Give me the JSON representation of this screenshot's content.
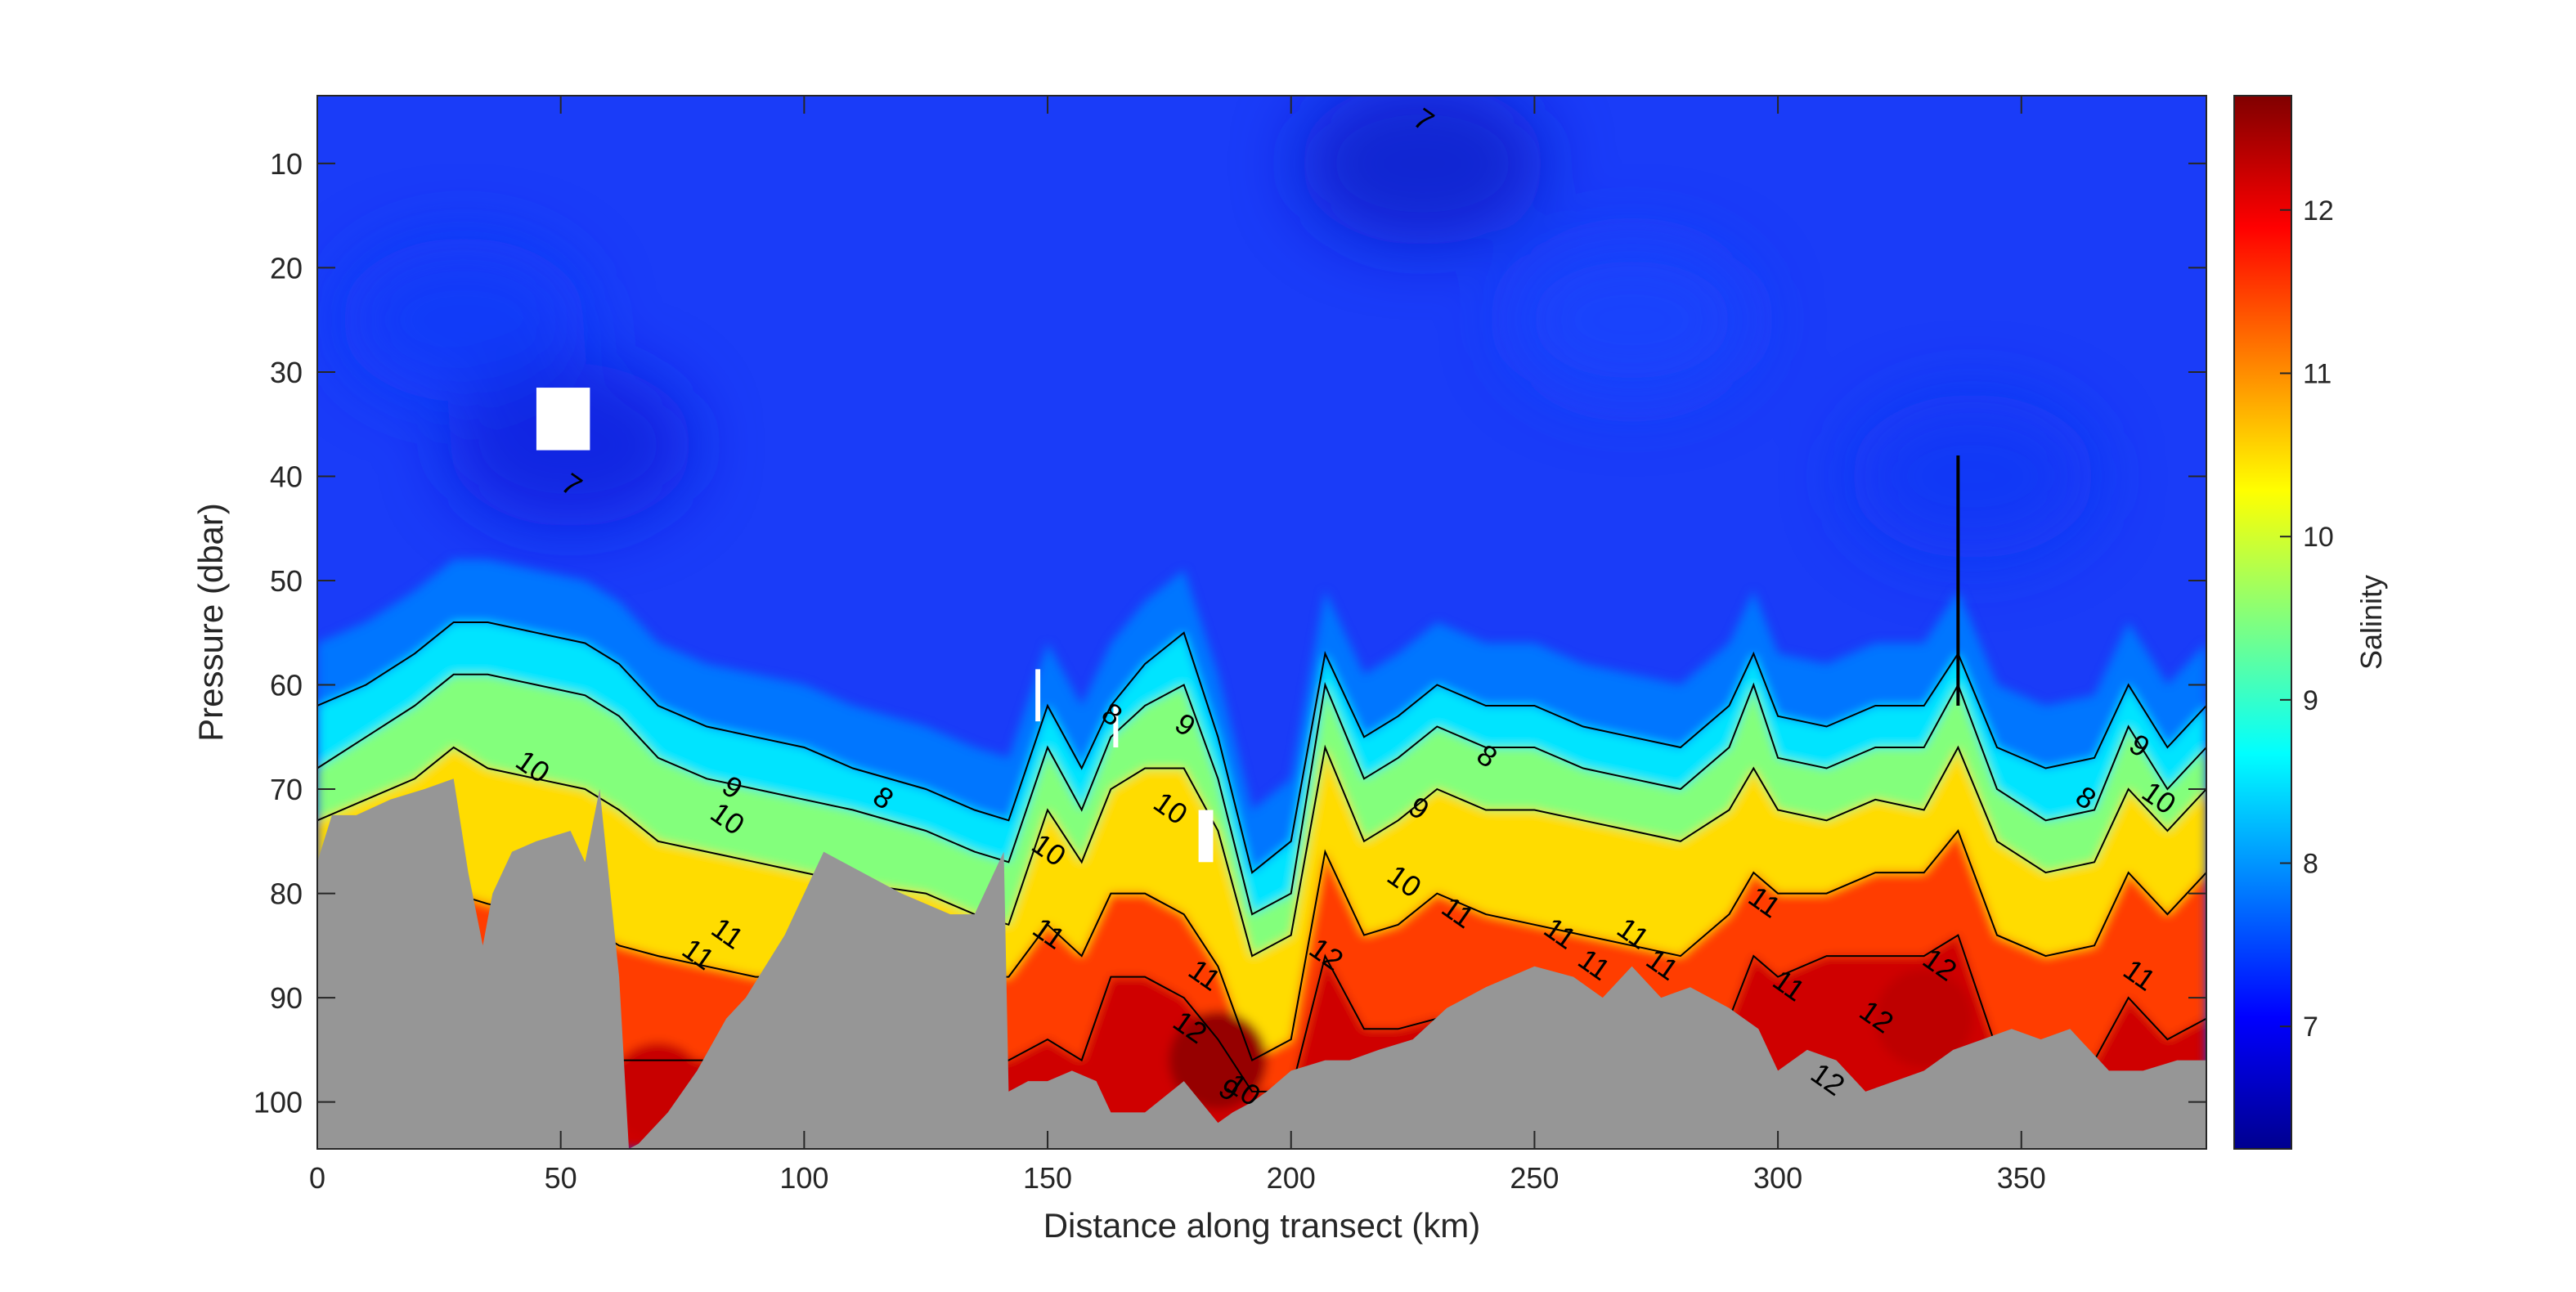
{
  "chart_data": {
    "type": "heatmap",
    "title": "",
    "xlabel": "Distance along transect (km)",
    "ylabel": "Pressure (dbar)",
    "colorbar_label": "Salinity",
    "xlim": [
      0,
      388
    ],
    "ylim": [
      104.5,
      3.5
    ],
    "x_ticks": [
      0,
      50,
      100,
      150,
      200,
      250,
      300,
      350
    ],
    "y_ticks": [
      10,
      20,
      30,
      40,
      50,
      60,
      70,
      80,
      90,
      100
    ],
    "color_range": [
      6.25,
      12.7
    ],
    "colorbar_ticks": [
      7,
      8,
      9,
      10,
      11,
      12
    ],
    "colormap": "jet",
    "seafloor_color": "#969696",
    "contour_levels": [
      7,
      8,
      9,
      10,
      11,
      12
    ],
    "isopycnals": {
      "x": [
        0,
        10,
        20,
        28,
        35,
        45,
        55,
        62,
        70,
        80,
        90,
        100,
        110,
        125,
        135,
        142,
        150,
        157,
        163,
        170,
        178,
        185,
        192,
        200,
        207,
        215,
        222,
        230,
        240,
        250,
        260,
        270,
        280,
        290,
        295,
        300,
        310,
        320,
        330,
        337,
        345,
        355,
        365,
        372,
        380,
        388
      ],
      "s8": [
        62,
        60,
        57,
        54,
        54,
        55,
        56,
        58,
        62,
        64,
        65,
        66,
        68,
        70,
        72,
        73,
        62,
        68,
        62,
        58,
        55,
        65,
        78,
        75,
        57,
        65,
        63,
        60,
        62,
        62,
        64,
        65,
        66,
        62,
        57,
        63,
        64,
        62,
        62,
        57,
        66,
        68,
        67,
        60,
        66,
        62
      ],
      "s9": [
        68,
        65,
        62,
        59,
        59,
        60,
        61,
        63,
        67,
        69,
        70,
        71,
        72,
        74,
        76,
        77,
        66,
        72,
        65,
        62,
        60,
        69,
        82,
        80,
        60,
        69,
        67,
        64,
        66,
        66,
        68,
        69,
        70,
        66,
        60,
        67,
        68,
        66,
        66,
        60,
        70,
        73,
        72,
        64,
        70,
        66
      ],
      "s10": [
        73,
        71,
        69,
        66,
        68,
        69,
        70,
        72,
        75,
        76,
        77,
        78,
        79,
        80,
        82,
        83,
        72,
        77,
        70,
        68,
        68,
        74,
        86,
        84,
        66,
        75,
        73,
        70,
        72,
        72,
        73,
        74,
        75,
        72,
        68,
        72,
        73,
        71,
        72,
        66,
        75,
        78,
        77,
        70,
        74,
        70
      ],
      "s11": [
        86,
        84,
        82,
        80,
        81,
        82,
        83,
        85,
        86,
        87,
        88,
        88,
        88,
        88,
        88,
        88,
        83,
        86,
        80,
        80,
        82,
        87,
        96,
        94,
        76,
        84,
        83,
        80,
        82,
        83,
        84,
        85,
        86,
        82,
        78,
        80,
        80,
        78,
        78,
        74,
        84,
        86,
        85,
        78,
        82,
        78
      ],
      "s12": [
        96,
        95,
        94,
        93,
        93,
        94,
        95,
        96,
        96,
        96,
        96,
        96,
        96,
        96,
        96,
        96,
        94,
        96,
        88,
        88,
        90,
        94,
        99,
        99,
        86,
        93,
        93,
        92,
        93,
        94,
        94,
        94,
        95,
        92,
        86,
        88,
        86,
        86,
        86,
        84,
        95,
        97,
        96,
        90,
        94,
        92
      ]
    },
    "bottom_profile": {
      "x": [
        0,
        3,
        8,
        15,
        22,
        28,
        31,
        34,
        36,
        40,
        45,
        52,
        55,
        58,
        62,
        64,
        66,
        72,
        78,
        84,
        88,
        96,
        104,
        112,
        120,
        130,
        135,
        138,
        140,
        141,
        142,
        146,
        150,
        155,
        160,
        163,
        164,
        165,
        170,
        178,
        185,
        188,
        192,
        195,
        200,
        207,
        212,
        218,
        225,
        232,
        240,
        250,
        258,
        264,
        270,
        276,
        282,
        290,
        296,
        300,
        306,
        312,
        318,
        324,
        330,
        336,
        342,
        348,
        354,
        360,
        368,
        375,
        382,
        388
      ],
      "y": [
        77,
        72.5,
        72.5,
        71,
        70,
        69,
        78,
        85,
        80,
        76,
        75,
        74,
        77,
        70,
        88,
        104.5,
        104,
        101,
        97,
        92,
        90,
        84,
        76,
        78,
        80,
        82,
        82,
        79,
        77,
        76,
        99,
        98,
        98,
        97,
        98,
        101,
        101,
        101,
        101,
        98,
        102,
        101,
        100,
        99,
        97,
        96,
        96,
        95,
        94,
        91,
        89,
        87,
        88,
        90,
        87,
        90,
        89,
        91,
        93,
        97,
        95,
        96,
        99,
        98,
        97,
        95,
        94,
        93,
        94,
        93,
        97,
        97,
        96,
        96
      ]
    },
    "data_gaps": [
      {
        "x0": 45,
        "x1": 56,
        "y0": 31.5,
        "y1": 37.5
      },
      {
        "x0": 147.5,
        "x1": 148.5,
        "y0": 58.5,
        "y1": 63.5
      },
      {
        "x0": 163.5,
        "x1": 164.5,
        "y0": 62,
        "y1": 66
      },
      {
        "x0": 181,
        "x1": 184,
        "y0": 72,
        "y1": 77
      }
    ],
    "contour_labels": [
      {
        "text": "7",
        "x": 52,
        "y": 41
      },
      {
        "text": "7",
        "x": 227,
        "y": 6
      },
      {
        "text": "10",
        "x": 44,
        "y": 68
      },
      {
        "text": "8",
        "x": 116,
        "y": 71
      },
      {
        "text": "10",
        "x": 84,
        "y": 73
      },
      {
        "text": "9",
        "x": 85,
        "y": 70
      },
      {
        "text": "11",
        "x": 78,
        "y": 86
      },
      {
        "text": "11",
        "x": 84,
        "y": 84
      },
      {
        "text": "8",
        "x": 163,
        "y": 63
      },
      {
        "text": "9",
        "x": 178,
        "y": 64
      },
      {
        "text": "10",
        "x": 175,
        "y": 72
      },
      {
        "text": "10",
        "x": 150,
        "y": 76
      },
      {
        "text": "11",
        "x": 150,
        "y": 84
      },
      {
        "text": "11",
        "x": 182,
        "y": 88
      },
      {
        "text": "12",
        "x": 179,
        "y": 93
      },
      {
        "text": "10",
        "x": 190,
        "y": 99
      },
      {
        "text": "9",
        "x": 187,
        "y": 99
      },
      {
        "text": "12",
        "x": 207,
        "y": 86
      },
      {
        "text": "8",
        "x": 240,
        "y": 67
      },
      {
        "text": "9",
        "x": 226,
        "y": 72
      },
      {
        "text": "10",
        "x": 223,
        "y": 79
      },
      {
        "text": "11",
        "x": 234,
        "y": 82
      },
      {
        "text": "11",
        "x": 255,
        "y": 84
      },
      {
        "text": "11",
        "x": 262,
        "y": 87
      },
      {
        "text": "11",
        "x": 270,
        "y": 84
      },
      {
        "text": "11",
        "x": 276,
        "y": 87
      },
      {
        "text": "11",
        "x": 297,
        "y": 81
      },
      {
        "text": "11",
        "x": 302,
        "y": 89
      },
      {
        "text": "12",
        "x": 320,
        "y": 92
      },
      {
        "text": "12",
        "x": 310,
        "y": 98
      },
      {
        "text": "12",
        "x": 333,
        "y": 87
      },
      {
        "text": "8",
        "x": 363,
        "y": 71
      },
      {
        "text": "9",
        "x": 374,
        "y": 66
      },
      {
        "text": "10",
        "x": 378,
        "y": 71
      },
      {
        "text": "11",
        "x": 374,
        "y": 88
      }
    ]
  }
}
